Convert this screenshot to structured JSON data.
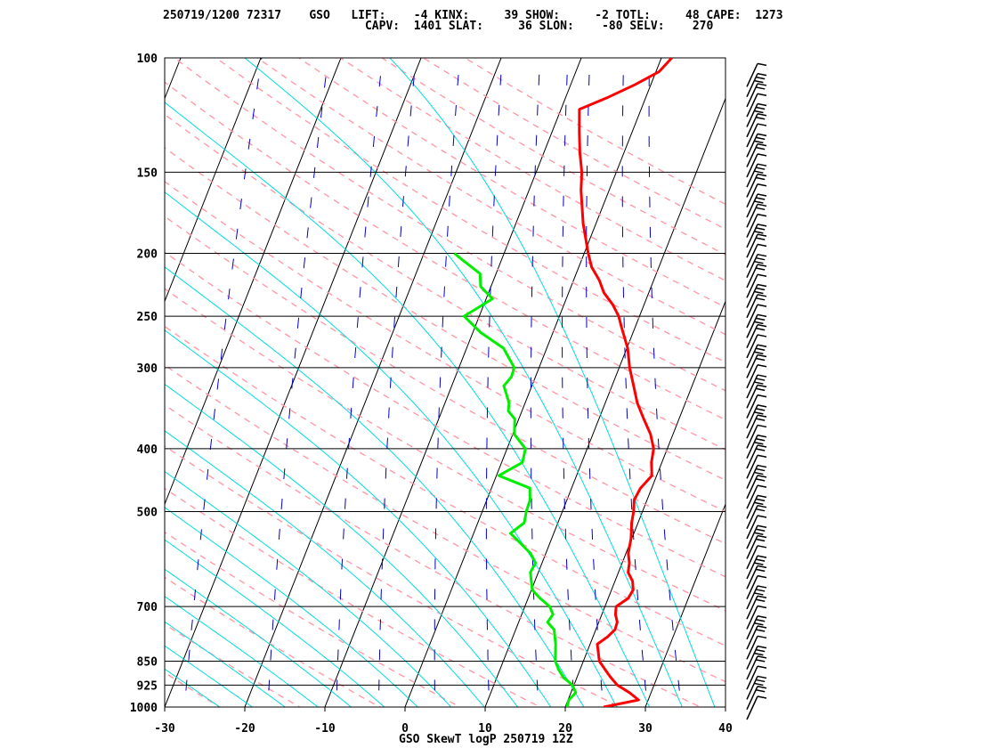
{
  "header": {
    "line1": "250719/1200 72317    GSO   LIFT:    -4 KINX:     39 SHOW:     -2 TOTL:     48 CAPE:  1273",
    "line2": "                             CAPV:  1401 SLAT:     36 SLON:    -80 SELV:    270"
  },
  "footer": {
    "title": "GSO SkewT logP 250719 12Z"
  },
  "colors": {
    "temperature": "#ff0000",
    "dewpoint": "#00ee00",
    "isotherm": "#000000",
    "dry_adiabat": "#ff9aa8",
    "moist_adiabat": "#00dddd",
    "mixing_ratio": "#0000cc",
    "wind_barb": "#000000"
  },
  "chart_data": {
    "type": "line",
    "subtype": "skew-t log-p",
    "title": "GSO SkewT logP 250719 12Z",
    "x_ticks": [
      -30,
      -20,
      -10,
      0,
      10,
      20,
      30,
      40
    ],
    "p_ticks": [
      100,
      150,
      200,
      250,
      300,
      400,
      500,
      700,
      850,
      925,
      1000
    ],
    "xlim": [
      -30,
      40
    ],
    "plim": [
      1000,
      100
    ],
    "log_pressure_axis": true,
    "grid": true,
    "series": [
      {
        "variable": "temperature",
        "points": [
          [
            1000,
            24.8
          ],
          [
            975,
            28.8
          ],
          [
            950,
            27.3
          ],
          [
            925,
            25.4
          ],
          [
            900,
            24.2
          ],
          [
            875,
            23.1
          ],
          [
            850,
            22.0
          ],
          [
            800,
            20.9
          ],
          [
            780,
            21.8
          ],
          [
            760,
            22.4
          ],
          [
            740,
            22.3
          ],
          [
            720,
            21.7
          ],
          [
            700,
            21.4
          ],
          [
            680,
            22.5
          ],
          [
            660,
            22.7
          ],
          [
            640,
            22.2
          ],
          [
            620,
            21.2
          ],
          [
            600,
            20.9
          ],
          [
            580,
            20.3
          ],
          [
            550,
            19.9
          ],
          [
            520,
            19.2
          ],
          [
            500,
            18.9
          ],
          [
            480,
            18.4
          ],
          [
            460,
            18.6
          ],
          [
            440,
            19.4
          ],
          [
            420,
            18.7
          ],
          [
            400,
            18.3
          ],
          [
            380,
            17.2
          ],
          [
            360,
            15.6
          ],
          [
            340,
            14.0
          ],
          [
            320,
            12.7
          ],
          [
            300,
            11.3
          ],
          [
            280,
            10.1
          ],
          [
            260,
            8.3
          ],
          [
            250,
            7.4
          ],
          [
            240,
            6.1
          ],
          [
            230,
            4.4
          ],
          [
            220,
            3.2
          ],
          [
            210,
            1.6
          ],
          [
            200,
            0.5
          ],
          [
            180,
            -1.6
          ],
          [
            160,
            -3.5
          ],
          [
            150,
            -4.3
          ],
          [
            140,
            -5.5
          ],
          [
            130,
            -6.6
          ],
          [
            120,
            -7.7
          ],
          [
            115,
            -4.7
          ],
          [
            110,
            -2.0
          ],
          [
            105,
            0.4
          ],
          [
            100,
            1.3
          ]
        ]
      },
      {
        "variable": "dewpoint",
        "points": [
          [
            1000,
            20.2
          ],
          [
            975,
            20.1
          ],
          [
            950,
            20.6
          ],
          [
            925,
            19.8
          ],
          [
            900,
            18.3
          ],
          [
            875,
            17.3
          ],
          [
            850,
            16.5
          ],
          [
            800,
            15.7
          ],
          [
            760,
            14.8
          ],
          [
            740,
            13.6
          ],
          [
            720,
            13.9
          ],
          [
            700,
            13.1
          ],
          [
            680,
            11.5
          ],
          [
            660,
            10.1
          ],
          [
            620,
            9.0
          ],
          [
            600,
            9.2
          ],
          [
            580,
            8.1
          ],
          [
            560,
            6.4
          ],
          [
            540,
            4.6
          ],
          [
            520,
            5.8
          ],
          [
            500,
            5.5
          ],
          [
            480,
            5.4
          ],
          [
            460,
            4.8
          ],
          [
            440,
            0.3
          ],
          [
            420,
            2.6
          ],
          [
            400,
            2.3
          ],
          [
            380,
            0.2
          ],
          [
            360,
            -0.5
          ],
          [
            350,
            -1.7
          ],
          [
            340,
            -2.0
          ],
          [
            320,
            -3.5
          ],
          [
            310,
            -3.0
          ],
          [
            300,
            -3.1
          ],
          [
            280,
            -5.4
          ],
          [
            265,
            -9.0
          ],
          [
            250,
            -11.9
          ],
          [
            235,
            -9.2
          ],
          [
            225,
            -11.3
          ],
          [
            215,
            -12.0
          ],
          [
            205,
            -14.8
          ],
          [
            200,
            -16.2
          ]
        ]
      }
    ],
    "winds_note": "wind barbs drawn on right edge of diagram"
  }
}
